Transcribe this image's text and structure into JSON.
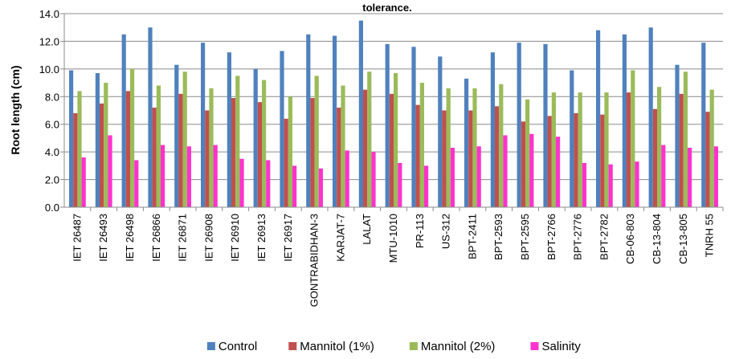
{
  "chart_data": {
    "type": "bar",
    "title": "tolerance.",
    "xlabel": "",
    "ylabel": "Root length (cm)",
    "ylim": [
      0,
      14
    ],
    "yticks": [
      "0.0",
      "2.0",
      "4.0",
      "6.0",
      "8.0",
      "10.0",
      "12.0",
      "14.0"
    ],
    "grid": true,
    "legend_position": "bottom",
    "categories": [
      "IET 26487",
      "IET 26493",
      "IET 26498",
      "IET 26866",
      "IET 26871",
      "IET 26908",
      "IET 26910",
      "IET 26913",
      "IET 26917",
      "GONTRABIDHAN-3",
      "KARJAT-7",
      "LALAT",
      "MTU-1010",
      "PR-113",
      "US-312",
      "BPT-2411",
      "BPT-2593",
      "BPT-2595",
      "BPT-2766",
      "BPT-2776",
      "BPT-2782",
      "CB-06-803",
      "CB-13-804",
      "CB-13-805",
      "TNRH 55"
    ],
    "series": [
      {
        "name": "Control",
        "color": "#4F81BD",
        "values": [
          9.9,
          9.7,
          12.5,
          13.0,
          10.3,
          11.9,
          11.2,
          10.0,
          11.3,
          12.5,
          12.4,
          13.5,
          11.8,
          11.6,
          10.9,
          9.3,
          11.2,
          11.9,
          11.8,
          9.9,
          12.8,
          12.5,
          13.0,
          10.3,
          11.9
        ]
      },
      {
        "name": "Mannitol (1%)",
        "color": "#C0504D",
        "values": [
          6.8,
          7.5,
          8.4,
          7.2,
          8.2,
          7.0,
          7.9,
          7.6,
          6.4,
          7.9,
          7.2,
          8.5,
          8.2,
          7.4,
          7.0,
          7.0,
          7.3,
          6.2,
          6.6,
          6.8,
          6.7,
          8.3,
          7.1,
          8.2,
          6.9
        ]
      },
      {
        "name": "Mannitol (2%)",
        "color": "#9BBB59",
        "values": [
          8.4,
          9.0,
          10.0,
          8.8,
          9.8,
          8.6,
          9.5,
          9.2,
          8.0,
          9.5,
          8.8,
          9.8,
          9.7,
          9.0,
          8.6,
          8.6,
          8.9,
          7.8,
          8.3,
          8.3,
          8.3,
          9.9,
          8.7,
          9.8,
          8.5
        ]
      },
      {
        "name": "Salinity",
        "color": "#FF33CC",
        "values": [
          3.6,
          5.2,
          3.4,
          4.5,
          4.4,
          4.5,
          3.5,
          3.4,
          3.0,
          2.8,
          4.1,
          4.0,
          3.2,
          3.0,
          4.3,
          4.4,
          5.2,
          5.3,
          5.1,
          3.2,
          3.1,
          3.3,
          4.5,
          4.3,
          4.4
        ]
      }
    ]
  }
}
